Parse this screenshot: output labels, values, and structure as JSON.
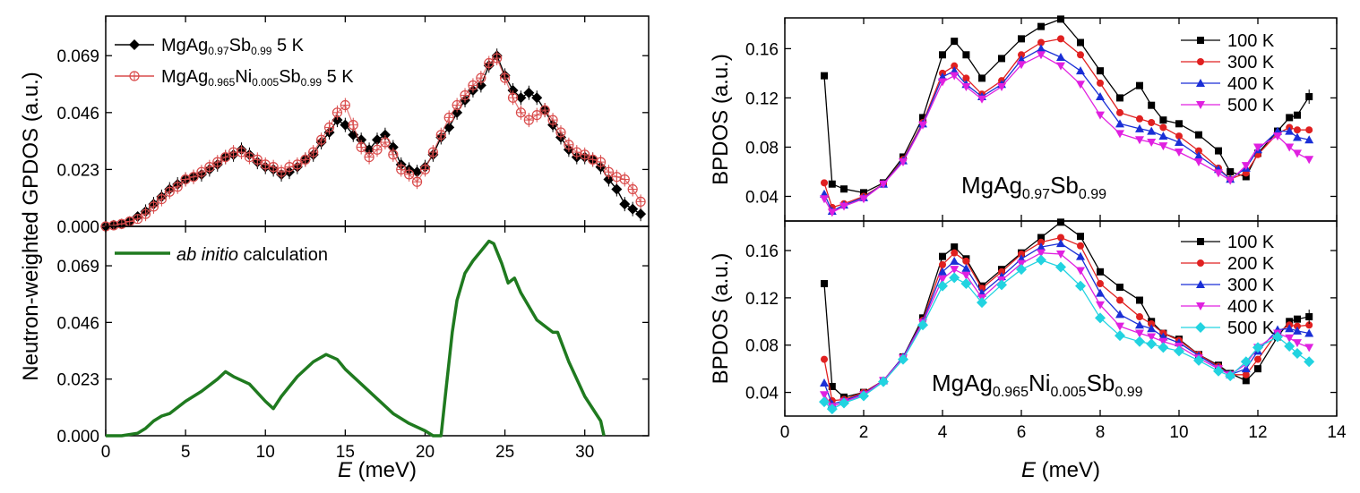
{
  "chart_data": [
    {
      "id": "gpdos_experiment",
      "type": "line",
      "ylabel": "Neutron-weighted GPDOS (a.u.)",
      "xlim": [
        0,
        34
      ],
      "ylim": [
        0,
        0.085
      ],
      "yticks": [
        "0.000",
        "0.023",
        "0.046",
        "0.069"
      ],
      "ytick_values": [
        0,
        0.023,
        0.046,
        0.069
      ],
      "legend_position": "top-left",
      "series": [
        {
          "name": "MgAg0.97Sb0.99 5 K",
          "legend_parts": [
            "MgAg",
            "0.97",
            "Sb",
            "0.99",
            " 5 K"
          ],
          "color": "#000000",
          "marker": "diamond",
          "x": [
            0,
            0.5,
            1,
            1.5,
            2,
            2.5,
            3,
            3.5,
            4,
            4.5,
            5,
            5.5,
            6,
            6.5,
            7,
            7.5,
            8,
            8.5,
            9,
            9.5,
            10,
            10.5,
            11,
            11.5,
            12,
            12.5,
            13,
            13.5,
            14,
            14.5,
            15,
            15.5,
            16,
            16.5,
            17,
            17.5,
            18,
            18.5,
            19,
            19.5,
            20,
            20.5,
            21,
            21.5,
            22,
            22.5,
            23,
            23.5,
            24,
            24.5,
            25,
            25.5,
            26,
            26.5,
            27,
            27.5,
            28,
            28.5,
            29,
            29.5,
            30,
            30.5,
            31,
            31.5,
            32,
            32.5,
            33,
            33.5
          ],
          "y": [
            0,
            0.0005,
            0.001,
            0.002,
            0.004,
            0.006,
            0.009,
            0.012,
            0.015,
            0.017,
            0.019,
            0.02,
            0.021,
            0.023,
            0.025,
            0.028,
            0.029,
            0.031,
            0.029,
            0.026,
            0.024,
            0.023,
            0.021,
            0.022,
            0.024,
            0.027,
            0.029,
            0.034,
            0.038,
            0.043,
            0.041,
            0.037,
            0.035,
            0.031,
            0.035,
            0.037,
            0.032,
            0.025,
            0.023,
            0.022,
            0.024,
            0.029,
            0.036,
            0.04,
            0.046,
            0.051,
            0.055,
            0.057,
            0.065,
            0.069,
            0.061,
            0.055,
            0.052,
            0.054,
            0.052,
            0.047,
            0.041,
            0.036,
            0.031,
            0.028,
            0.028,
            0.027,
            0.024,
            0.019,
            0.015,
            0.009,
            0.007,
            0.005
          ]
        },
        {
          "name": "MgAg0.965Ni0.005Sb0.99 5 K",
          "legend_parts": [
            "MgAg",
            "0.965",
            "Ni",
            "0.005",
            "Sb",
            "0.99",
            " 5 K"
          ],
          "color": "#d94b4b",
          "marker": "circle-open",
          "x": [
            0,
            0.5,
            1,
            1.5,
            2,
            2.5,
            3,
            3.5,
            4,
            4.5,
            5,
            5.5,
            6,
            6.5,
            7,
            7.5,
            8,
            8.5,
            9,
            9.5,
            10,
            10.5,
            11,
            11.5,
            12,
            12.5,
            13,
            13.5,
            14,
            14.5,
            15,
            15.5,
            16,
            16.5,
            17,
            17.5,
            18,
            18.5,
            19,
            19.5,
            20,
            20.5,
            21,
            21.5,
            22,
            22.5,
            23,
            23.5,
            24,
            24.5,
            25,
            25.5,
            26,
            26.5,
            27,
            27.5,
            28,
            28.5,
            29,
            29.5,
            30,
            30.5,
            31,
            31.5,
            32,
            32.5,
            33,
            33.5
          ],
          "y": [
            0,
            0.0004,
            0.001,
            0.002,
            0.003,
            0.005,
            0.008,
            0.011,
            0.014,
            0.016,
            0.019,
            0.02,
            0.022,
            0.024,
            0.026,
            0.028,
            0.03,
            0.03,
            0.028,
            0.027,
            0.025,
            0.024,
            0.022,
            0.024,
            0.025,
            0.027,
            0.03,
            0.035,
            0.04,
            0.046,
            0.049,
            0.041,
            0.032,
            0.028,
            0.031,
            0.034,
            0.029,
            0.023,
            0.021,
            0.018,
            0.023,
            0.03,
            0.037,
            0.044,
            0.049,
            0.053,
            0.057,
            0.06,
            0.066,
            0.068,
            0.06,
            0.052,
            0.046,
            0.043,
            0.045,
            0.047,
            0.043,
            0.038,
            0.033,
            0.03,
            0.029,
            0.027,
            0.026,
            0.022,
            0.02,
            0.019,
            0.015,
            0.01
          ]
        }
      ]
    },
    {
      "id": "gpdos_calculation",
      "type": "line",
      "xlabel": "E (meV)",
      "xlabel_parts": [
        "E",
        " (meV)"
      ],
      "xlim": [
        0,
        34
      ],
      "ylim": [
        0,
        0.085
      ],
      "xticks": [
        "0",
        "5",
        "10",
        "15",
        "20",
        "25",
        "30"
      ],
      "xtick_values": [
        0,
        5,
        10,
        15,
        20,
        25,
        30
      ],
      "yticks": [
        "0.000",
        "0.023",
        "0.046",
        "0.069"
      ],
      "ytick_values": [
        0,
        0.023,
        0.046,
        0.069
      ],
      "series": [
        {
          "name": "ab initio calculation",
          "legend_parts": [
            "ab initio",
            " calculation"
          ],
          "color": "#1f7a1f",
          "x": [
            0,
            1,
            2,
            2.5,
            3,
            3.5,
            4,
            5,
            6,
            7,
            7.5,
            8,
            9,
            10,
            10.5,
            11,
            12,
            13,
            13.8,
            14.5,
            15,
            16,
            17,
            18,
            19,
            20,
            20.5,
            21,
            21.3,
            21.7,
            22,
            22.5,
            23,
            23.5,
            24,
            24.3,
            24.8,
            25.2,
            25.6,
            26,
            27,
            28,
            28.3,
            29,
            30,
            31,
            31.2
          ],
          "y": [
            0,
            0,
            0.001,
            0.003,
            0.006,
            0.008,
            0.009,
            0.014,
            0.018,
            0.023,
            0.026,
            0.024,
            0.021,
            0.014,
            0.011,
            0.016,
            0.024,
            0.03,
            0.033,
            0.031,
            0.027,
            0.021,
            0.015,
            0.009,
            0.005,
            0.002,
            0,
            0,
            0.018,
            0.042,
            0.055,
            0.066,
            0.071,
            0.075,
            0.079,
            0.078,
            0.07,
            0.062,
            0.064,
            0.058,
            0.047,
            0.042,
            0.042,
            0.03,
            0.016,
            0.006,
            0
          ]
        }
      ]
    },
    {
      "id": "bpdos_mgag",
      "type": "line",
      "ylabel": "BPDOS (a.u.)",
      "sample_label_parts": [
        "MgAg",
        "0.97",
        "Sb",
        "0.99"
      ],
      "xlim": [
        0,
        14
      ],
      "ylim": [
        0.02,
        0.185
      ],
      "yticks": [
        "0.04",
        "0.08",
        "0.12",
        "0.16"
      ],
      "ytick_values": [
        0.04,
        0.08,
        0.12,
        0.16
      ],
      "legend_position": "top-right",
      "x": [
        1,
        1.2,
        1.5,
        2,
        2.5,
        3,
        3.5,
        4,
        4.3,
        4.6,
        5,
        5.5,
        6,
        6.5,
        7,
        7.5,
        8,
        8.5,
        9,
        9.3,
        9.6,
        10,
        10.5,
        11,
        11.3,
        11.7,
        12,
        12.5,
        12.8,
        13,
        13.3
      ],
      "series": [
        {
          "name": "100 K",
          "color": "#000000",
          "marker": "square",
          "y": [
            0.138,
            0.05,
            0.046,
            0.043,
            0.051,
            0.072,
            0.104,
            0.155,
            0.166,
            0.155,
            0.136,
            0.152,
            0.168,
            0.178,
            0.184,
            0.165,
            0.142,
            0.12,
            0.13,
            0.114,
            0.102,
            0.099,
            0.09,
            0.077,
            0.06,
            0.056,
            0.075,
            0.093,
            0.104,
            0.106,
            0.121
          ]
        },
        {
          "name": "300 K",
          "color": "#e02020",
          "marker": "circle",
          "y": [
            0.051,
            0.031,
            0.034,
            0.04,
            0.05,
            0.07,
            0.1,
            0.14,
            0.146,
            0.136,
            0.123,
            0.134,
            0.155,
            0.165,
            0.168,
            0.155,
            0.132,
            0.108,
            0.103,
            0.1,
            0.096,
            0.089,
            0.077,
            0.063,
            0.054,
            0.059,
            0.074,
            0.091,
            0.096,
            0.094,
            0.094
          ]
        },
        {
          "name": "400 K",
          "color": "#1a2fd6",
          "marker": "triangle-up",
          "y": [
            0.042,
            0.028,
            0.033,
            0.039,
            0.05,
            0.069,
            0.099,
            0.137,
            0.142,
            0.131,
            0.121,
            0.131,
            0.151,
            0.16,
            0.153,
            0.142,
            0.121,
            0.099,
            0.095,
            0.093,
            0.089,
            0.084,
            0.073,
            0.062,
            0.054,
            0.063,
            0.078,
            0.093,
            0.093,
            0.088,
            0.086
          ]
        },
        {
          "name": "500 K",
          "color": "#e020e0",
          "marker": "triangle-down",
          "y": [
            0.038,
            0.027,
            0.032,
            0.038,
            0.05,
            0.068,
            0.098,
            0.133,
            0.138,
            0.129,
            0.119,
            0.129,
            0.147,
            0.155,
            0.146,
            0.131,
            0.106,
            0.091,
            0.086,
            0.084,
            0.081,
            0.076,
            0.068,
            0.059,
            0.053,
            0.065,
            0.08,
            0.089,
            0.08,
            0.075,
            0.07
          ]
        }
      ]
    },
    {
      "id": "bpdos_mgagni",
      "type": "line",
      "ylabel": "BPDOS (a.u.)",
      "xlabel": "E (meV)",
      "xlabel_parts": [
        "E",
        " (meV)"
      ],
      "sample_label_parts": [
        "MgAg",
        "0.965",
        "Ni",
        "0.005",
        "Sb",
        "0.99"
      ],
      "xlim": [
        0,
        14
      ],
      "ylim": [
        0.02,
        0.185
      ],
      "xticks": [
        "0",
        "2",
        "4",
        "6",
        "8",
        "10",
        "12",
        "14"
      ],
      "xtick_values": [
        0,
        2,
        4,
        6,
        8,
        10,
        12,
        14
      ],
      "yticks": [
        "0.04",
        "0.08",
        "0.12",
        "0.16"
      ],
      "ytick_values": [
        0.04,
        0.08,
        0.12,
        0.16
      ],
      "legend_position": "top-right",
      "x": [
        1,
        1.2,
        1.5,
        2,
        2.5,
        3,
        3.5,
        4,
        4.3,
        4.6,
        5,
        5.5,
        6,
        6.5,
        7,
        7.5,
        8,
        8.5,
        9,
        9.3,
        9.6,
        10,
        10.5,
        11,
        11.3,
        11.7,
        12,
        12.5,
        12.8,
        13,
        13.3
      ],
      "series": [
        {
          "name": "100 K",
          "color": "#000000",
          "marker": "square",
          "y": [
            0.132,
            0.045,
            0.036,
            0.04,
            0.05,
            0.07,
            0.103,
            0.155,
            0.163,
            0.153,
            0.13,
            0.144,
            0.158,
            0.171,
            0.184,
            0.172,
            0.142,
            0.129,
            0.118,
            0.1,
            0.09,
            0.085,
            0.072,
            0.063,
            0.056,
            0.05,
            0.06,
            0.087,
            0.1,
            0.102,
            0.104
          ]
        },
        {
          "name": "200 K",
          "color": "#e02020",
          "marker": "circle",
          "y": [
            0.068,
            0.033,
            0.034,
            0.04,
            0.05,
            0.07,
            0.101,
            0.148,
            0.158,
            0.151,
            0.128,
            0.142,
            0.157,
            0.167,
            0.171,
            0.164,
            0.132,
            0.118,
            0.104,
            0.098,
            0.09,
            0.084,
            0.072,
            0.062,
            0.055,
            0.055,
            0.068,
            0.091,
            0.097,
            0.096,
            0.097
          ]
        },
        {
          "name": "300 K",
          "color": "#1a2fd6",
          "marker": "triangle-up",
          "y": [
            0.048,
            0.03,
            0.033,
            0.039,
            0.05,
            0.07,
            0.1,
            0.142,
            0.151,
            0.145,
            0.124,
            0.138,
            0.153,
            0.163,
            0.166,
            0.155,
            0.124,
            0.106,
            0.097,
            0.094,
            0.087,
            0.082,
            0.071,
            0.061,
            0.055,
            0.06,
            0.075,
            0.093,
            0.094,
            0.092,
            0.09
          ]
        },
        {
          "name": "400 K",
          "color": "#e020e0",
          "marker": "triangle-down",
          "y": [
            0.038,
            0.028,
            0.032,
            0.038,
            0.05,
            0.069,
            0.099,
            0.136,
            0.144,
            0.139,
            0.12,
            0.135,
            0.149,
            0.158,
            0.157,
            0.143,
            0.114,
            0.096,
            0.09,
            0.087,
            0.083,
            0.079,
            0.069,
            0.06,
            0.055,
            0.064,
            0.078,
            0.09,
            0.086,
            0.082,
            0.078
          ]
        },
        {
          "name": "500 K",
          "color": "#22d3e0",
          "marker": "diamond",
          "y": [
            0.032,
            0.026,
            0.031,
            0.037,
            0.049,
            0.068,
            0.097,
            0.13,
            0.137,
            0.132,
            0.116,
            0.131,
            0.144,
            0.152,
            0.146,
            0.13,
            0.103,
            0.088,
            0.083,
            0.081,
            0.078,
            0.075,
            0.067,
            0.058,
            0.054,
            0.066,
            0.078,
            0.087,
            0.079,
            0.073,
            0.066
          ]
        }
      ]
    }
  ]
}
